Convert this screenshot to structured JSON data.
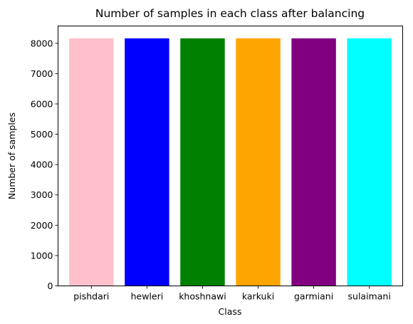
{
  "chart_data": {
    "type": "bar",
    "title": "Number of samples in each class after balancing",
    "xlabel": "Class",
    "ylabel": "Number of samples",
    "categories": [
      "pishdari",
      "hewleri",
      "khoshnawi",
      "karkuki",
      "garmiani",
      "sulaimani"
    ],
    "values": [
      8163,
      8163,
      8163,
      8163,
      8163,
      8163
    ],
    "colors": [
      "#ffc0cb",
      "#0000ff",
      "#008000",
      "#ffa500",
      "#800080",
      "#00ffff"
    ],
    "ylim": [
      0,
      8570
    ],
    "yticks": [
      0,
      1000,
      2000,
      3000,
      4000,
      5000,
      6000,
      7000,
      8000
    ],
    "grid": false,
    "legend": "none"
  }
}
